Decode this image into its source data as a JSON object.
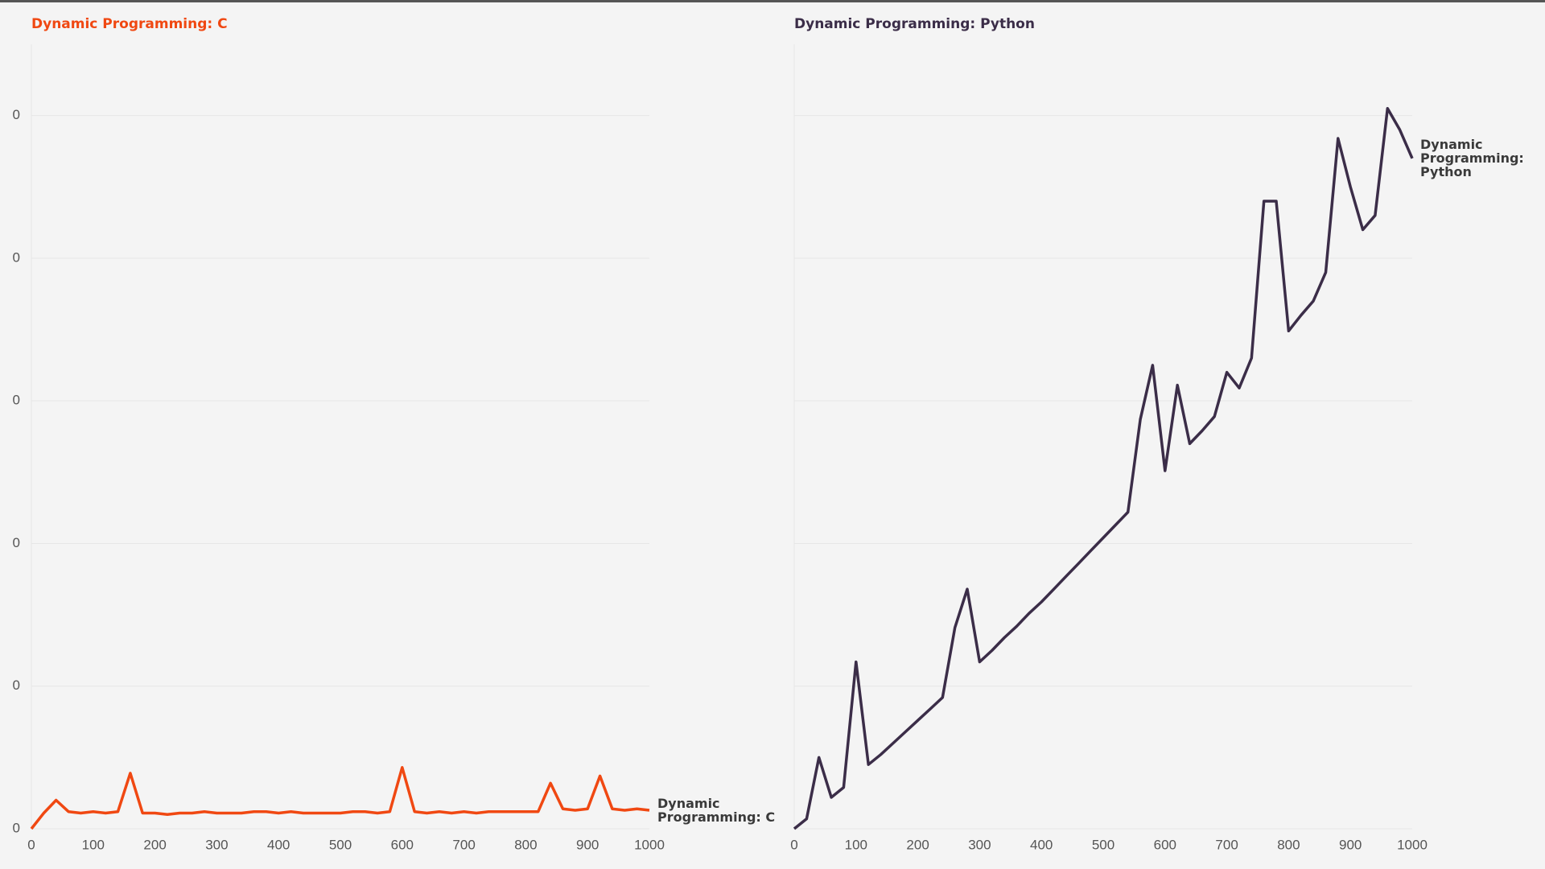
{
  "chart_data": [
    {
      "type": "line",
      "title": "Dynamic Programming: C",
      "x": [
        0,
        20,
        40,
        60,
        80,
        100,
        120,
        140,
        160,
        180,
        200,
        220,
        240,
        260,
        280,
        300,
        320,
        340,
        360,
        380,
        400,
        420,
        440,
        460,
        480,
        500,
        520,
        540,
        560,
        580,
        600,
        620,
        640,
        660,
        680,
        700,
        720,
        740,
        760,
        780,
        800,
        820,
        840,
        860,
        880,
        900,
        920,
        940,
        960,
        980,
        1000
      ],
      "series": [
        {
          "name": "Dynamic Programming: C",
          "color": "#f04812",
          "values": [
            0,
            0.011,
            0.02,
            0.012,
            0.011,
            0.012,
            0.011,
            0.012,
            0.039,
            0.011,
            0.011,
            0.01,
            0.011,
            0.011,
            0.012,
            0.011,
            0.011,
            0.011,
            0.012,
            0.012,
            0.011,
            0.012,
            0.011,
            0.011,
            0.011,
            0.011,
            0.012,
            0.012,
            0.011,
            0.012,
            0.043,
            0.012,
            0.011,
            0.012,
            0.011,
            0.012,
            0.011,
            0.012,
            0.012,
            0.012,
            0.012,
            0.012,
            0.032,
            0.014,
            0.013,
            0.014,
            0.037,
            0.014,
            0.013,
            0.014,
            0.013
          ]
        }
      ],
      "xlim": [
        0,
        1000
      ],
      "xticks": [
        0,
        100,
        200,
        300,
        400,
        500,
        600,
        700,
        800,
        900,
        1000
      ],
      "ylim": [
        0,
        0.55
      ],
      "yticks": [
        0,
        {
          "value": 0.1,
          "label": "0"
        },
        {
          "value": 0.2,
          "label": "0"
        },
        {
          "value": 0.3,
          "label": "0"
        },
        {
          "value": 0.4,
          "label": "0"
        },
        {
          "value": 0.5,
          "label": "0"
        }
      ],
      "grid": true
    },
    {
      "type": "line",
      "title": "Dynamic Programming: Python",
      "x": [
        0,
        20,
        40,
        60,
        80,
        100,
        120,
        140,
        160,
        180,
        200,
        220,
        240,
        260,
        280,
        300,
        320,
        340,
        360,
        380,
        400,
        420,
        440,
        460,
        480,
        500,
        520,
        540,
        560,
        580,
        600,
        620,
        640,
        660,
        680,
        700,
        720,
        740,
        760,
        780,
        800,
        820,
        840,
        860,
        880,
        900,
        920,
        940,
        960,
        980,
        1000
      ],
      "series": [
        {
          "name": "Dynamic Programming: Python",
          "color": "#3b2d48",
          "values": [
            0,
            0.007,
            0.05,
            0.022,
            0.029,
            0.117,
            0.045,
            0.052,
            0.06,
            0.068,
            0.076,
            0.084,
            0.092,
            0.141,
            0.168,
            0.117,
            0.125,
            0.134,
            0.142,
            0.151,
            0.159,
            0.168,
            0.177,
            0.186,
            0.195,
            0.204,
            0.213,
            0.222,
            0.287,
            0.325,
            0.251,
            0.311,
            0.27,
            0.279,
            0.289,
            0.32,
            0.309,
            0.33,
            0.44,
            0.44,
            0.349,
            0.36,
            0.37,
            0.39,
            0.484,
            0.45,
            0.42,
            0.43,
            0.505,
            0.49,
            0.47
          ]
        }
      ],
      "xlim": [
        0,
        1000
      ],
      "xticks": [
        0,
        100,
        200,
        300,
        400,
        500,
        600,
        700,
        800,
        900,
        1000
      ],
      "ylim": [
        0,
        0.55
      ],
      "yticks": [
        0,
        0.1,
        0.2,
        0.3,
        0.4,
        0.5
      ],
      "grid": true
    }
  ]
}
